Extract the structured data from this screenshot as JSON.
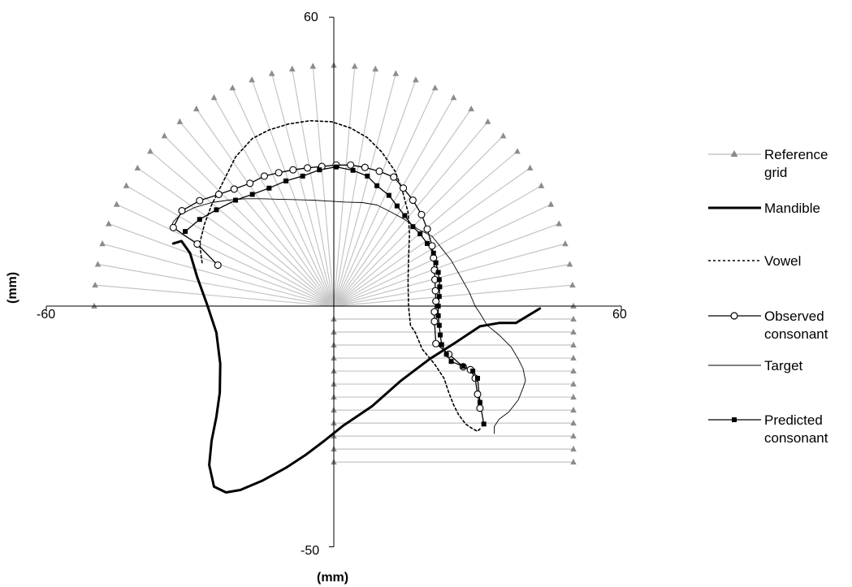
{
  "chart_data": {
    "type": "line",
    "title": "",
    "xlabel": "(mm)",
    "ylabel": "(mm)",
    "xlim": [
      -60,
      60
    ],
    "ylim": [
      -50,
      60
    ],
    "x_ticks": [
      "-60",
      "60"
    ],
    "y_ticks": [
      "60",
      "-50"
    ],
    "grid": false,
    "legend_position": "right",
    "reference_grid": {
      "radial_angles_deg": [
        0,
        5,
        10,
        15,
        20,
        25,
        30,
        35,
        40,
        45,
        50,
        55,
        60,
        65,
        70,
        75,
        80,
        85,
        90,
        95,
        100,
        105,
        110,
        115,
        120,
        125,
        130,
        135,
        140,
        145,
        150,
        155,
        160,
        165,
        170,
        175,
        180
      ],
      "radial_length": 50,
      "horizontal_rows_y": [
        -2.7,
        -5.4,
        -8.1,
        -10.8,
        -13.5,
        -16.2,
        -18.9,
        -21.6,
        -24.3,
        -27,
        -29.7,
        -32.4
      ],
      "horizontal_x_range": [
        0,
        50
      ]
    },
    "series": [
      {
        "name": "Reference grid",
        "style": "thin-gray-triangle",
        "x": [],
        "y": []
      },
      {
        "name": "Mandible",
        "style": "thick-solid",
        "x": [
          -33.5,
          -31.8,
          -30.0,
          -28.5,
          -26.5,
          -24.5,
          -23.7,
          -23.8,
          -24.5,
          -25.5,
          -26.0,
          -25.0,
          -22.5,
          -19.5,
          -15.0,
          -10.0,
          -6.0,
          -2.0,
          2.0,
          8.0,
          14.0,
          20.0,
          25.5,
          30.5,
          34.5,
          38.0,
          43.0
        ],
        "y": [
          13.0,
          13.5,
          11.0,
          6.0,
          0.5,
          -5.5,
          -12.0,
          -18.0,
          -23.0,
          -28.0,
          -33.0,
          -37.5,
          -38.7,
          -38.2,
          -36.3,
          -33.6,
          -31.0,
          -28.0,
          -24.8,
          -20.8,
          -15.5,
          -11.0,
          -7.5,
          -4.2,
          -3.5,
          -3.5,
          -0.5
        ]
      },
      {
        "name": "Vowel",
        "style": "dotted",
        "x": [
          -27.5,
          -28.0,
          -27.0,
          -25.5,
          -23.0,
          -20.5,
          -17.0,
          -13.5,
          -9.5,
          -5.0,
          -0.5,
          3.5,
          7.0,
          10.0,
          12.8,
          14.3,
          15.5,
          15.8,
          15.6,
          15.5,
          15.6,
          16.0,
          17.0,
          18.5,
          21.0,
          23.0,
          24.0,
          25.0,
          26.0,
          27.5,
          29.0,
          30.0,
          30.5
        ],
        "y": [
          9.0,
          13.0,
          17.0,
          21.0,
          26.0,
          31.0,
          34.8,
          36.6,
          37.8,
          38.5,
          38.3,
          37.0,
          35.0,
          32.0,
          28.0,
          24.0,
          19.5,
          15.0,
          10.0,
          5.0,
          0.0,
          -4.0,
          -5.5,
          -9.0,
          -12.0,
          -15.0,
          -18.0,
          -20.5,
          -22.5,
          -24.5,
          -25.5,
          -26.0,
          -25.5
        ]
      },
      {
        "name": "Observed consonant",
        "style": "solid-open-circle",
        "x": [
          -24.2,
          -28.5,
          -33.5,
          -31.7,
          -28.0,
          -24.0,
          -20.8,
          -17.5,
          -14.5,
          -11.5,
          -8.5,
          -5.5,
          -2.5,
          0.5,
          3.5,
          6.5,
          9.5,
          12.5,
          14.5,
          16.5,
          18.3,
          19.5,
          20.5,
          20.8,
          21.0,
          21.1,
          21.2,
          21.3,
          21.0,
          21.0,
          21.3,
          24.0,
          27.0,
          28.5,
          29.5,
          30.0,
          30.5
        ],
        "y": [
          8.5,
          12.9,
          16.3,
          19.8,
          21.9,
          23.2,
          24.3,
          25.5,
          27.0,
          27.7,
          28.3,
          28.7,
          29.0,
          29.3,
          29.3,
          28.8,
          28.0,
          26.8,
          24.5,
          22.0,
          19.0,
          16.0,
          12.5,
          10.0,
          7.5,
          5.5,
          3.2,
          1.0,
          -1.2,
          -3.2,
          -7.8,
          -10.0,
          -12.6,
          -13.2,
          -15.0,
          -18.3,
          -21.2
        ]
      },
      {
        "name": "Target",
        "style": "thin-solid",
        "x": [
          -34.0,
          -33.5,
          -32.0,
          -29.0,
          -25.5,
          -22.0,
          -18.5,
          -15.0,
          -11.5,
          -8.0,
          -4.5,
          -1.0,
          2.5,
          6.0,
          9.0,
          12.0,
          14.8,
          17.5,
          20.5,
          22.5,
          24.5,
          26.5,
          28.2,
          29.5,
          30.5,
          32.0,
          34.5,
          37.0,
          38.5,
          39.5,
          40.0,
          39.5,
          38.5,
          36.5,
          34.5,
          33.5,
          33.5
        ],
        "y": [
          16.0,
          17.5,
          19.0,
          20.5,
          21.5,
          22.0,
          22.3,
          22.3,
          22.2,
          22.1,
          22.0,
          21.8,
          21.6,
          21.5,
          21.0,
          19.5,
          18.0,
          16.0,
          14.5,
          12.0,
          9.5,
          6.0,
          3.0,
          0.0,
          -1.5,
          -4.0,
          -6.0,
          -8.5,
          -11.0,
          -13.0,
          -15.5,
          -17.0,
          -19.5,
          -22.0,
          -23.5,
          -25.0,
          -26.5
        ]
      },
      {
        "name": "Predicted consonant",
        "style": "solid-filled-square",
        "x": [
          -31.0,
          -28.0,
          -24.5,
          -20.5,
          -17.0,
          -13.5,
          -10.0,
          -6.5,
          -3.0,
          0.5,
          4.0,
          7.0,
          9.0,
          11.5,
          13.2,
          14.8,
          16.5,
          18.0,
          19.5,
          20.8,
          21.3,
          21.8,
          22.0,
          22.1,
          22.0,
          21.8,
          21.8,
          22.0,
          22.2,
          22.5,
          23.5,
          24.5,
          27.0,
          29.0,
          30.0,
          30.5,
          31.3
        ],
        "y": [
          15.5,
          18.0,
          20.0,
          22.0,
          23.2,
          24.5,
          26.0,
          27.0,
          28.3,
          28.9,
          28.2,
          27.0,
          25.0,
          23.0,
          20.8,
          18.8,
          16.5,
          15.0,
          13.0,
          11.0,
          9.0,
          7.0,
          5.5,
          4.0,
          2.0,
          0.0,
          -2.0,
          -4.0,
          -6.0,
          -8.0,
          -10.0,
          -11.5,
          -12.5,
          -13.5,
          -15.0,
          -20.0,
          -24.5
        ]
      }
    ]
  }
}
